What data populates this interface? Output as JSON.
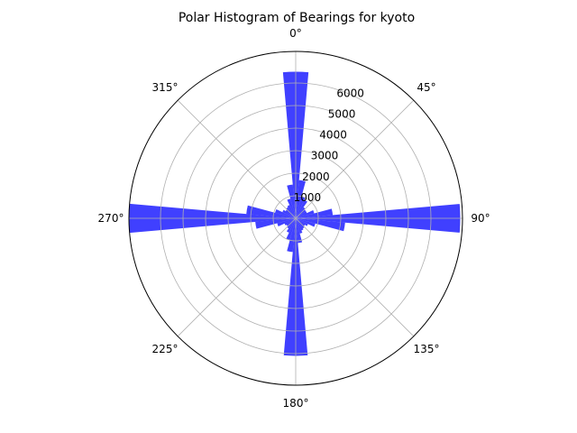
{
  "chart_data": {
    "type": "bar",
    "subtype": "polar-histogram",
    "title": "Polar Histogram of Bearings for kyoto",
    "angle_tick_labels": [
      "0°",
      "45°",
      "90°",
      "135°",
      "180°",
      "225°",
      "270°",
      "315°"
    ],
    "angle_tick_degrees": [
      0,
      45,
      90,
      135,
      180,
      225,
      270,
      315
    ],
    "radial_tick_labels": [
      "1000",
      "2000",
      "3000",
      "4000",
      "5000",
      "6000"
    ],
    "radial_ticks": [
      1000,
      2000,
      3000,
      4000,
      5000,
      6000
    ],
    "rlim": [
      0,
      7400
    ],
    "grid": true,
    "bar_color": "#0000ff",
    "bar_alpha": 0.75,
    "bin_width_deg": 10,
    "bins": [
      {
        "angle": 0,
        "value": 6500
      },
      {
        "angle": 10,
        "value": 1700
      },
      {
        "angle": 20,
        "value": 1000
      },
      {
        "angle": 30,
        "value": 900
      },
      {
        "angle": 40,
        "value": 600
      },
      {
        "angle": 50,
        "value": 550
      },
      {
        "angle": 60,
        "value": 550
      },
      {
        "angle": 70,
        "value": 850
      },
      {
        "angle": 80,
        "value": 1650
      },
      {
        "angle": 90,
        "value": 7300
      },
      {
        "angle": 100,
        "value": 2200
      },
      {
        "angle": 110,
        "value": 900
      },
      {
        "angle": 120,
        "value": 600
      },
      {
        "angle": 130,
        "value": 500
      },
      {
        "angle": 140,
        "value": 550
      },
      {
        "angle": 150,
        "value": 600
      },
      {
        "angle": 160,
        "value": 700
      },
      {
        "angle": 170,
        "value": 1100
      },
      {
        "angle": 180,
        "value": 6100
      },
      {
        "angle": 190,
        "value": 1500
      },
      {
        "angle": 200,
        "value": 1000
      },
      {
        "angle": 210,
        "value": 700
      },
      {
        "angle": 220,
        "value": 550
      },
      {
        "angle": 230,
        "value": 500
      },
      {
        "angle": 240,
        "value": 550
      },
      {
        "angle": 250,
        "value": 850
      },
      {
        "angle": 260,
        "value": 1800
      },
      {
        "angle": 270,
        "value": 7400
      },
      {
        "angle": 280,
        "value": 2200
      },
      {
        "angle": 290,
        "value": 950
      },
      {
        "angle": 300,
        "value": 650
      },
      {
        "angle": 310,
        "value": 550
      },
      {
        "angle": 320,
        "value": 600
      },
      {
        "angle": 330,
        "value": 650
      },
      {
        "angle": 340,
        "value": 900
      },
      {
        "angle": 350,
        "value": 1500
      }
    ]
  }
}
